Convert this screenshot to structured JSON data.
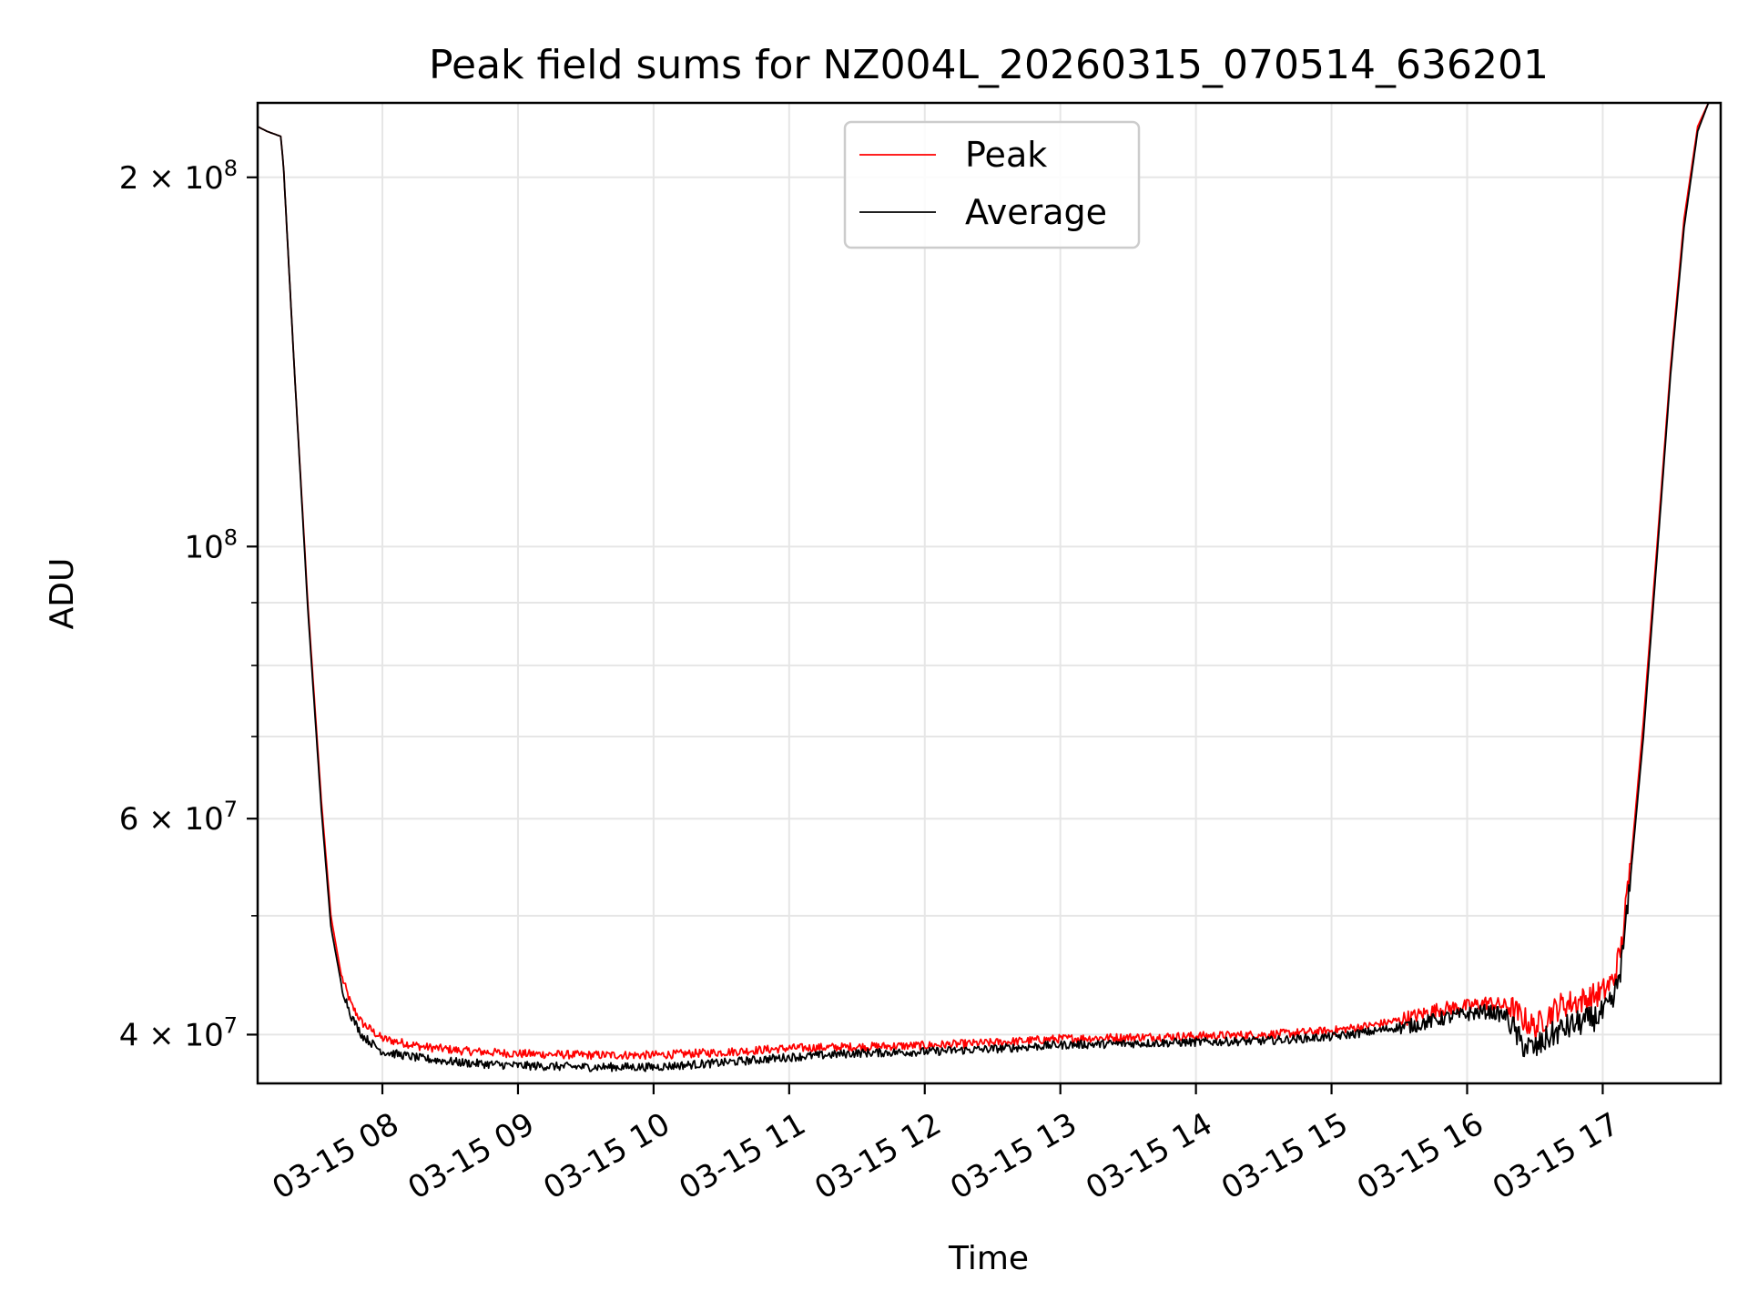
{
  "chart_data": {
    "type": "line",
    "title": "Peak field sums for NZ004L_20260315_070514_636201",
    "xlabel": "Time",
    "ylabel": "ADU",
    "yscale": "log",
    "grid": true,
    "legend_position": "upper-center",
    "colors": {
      "Peak": "#ff0000",
      "Average": "#000000"
    },
    "xlim_hours": [
      7.08,
      17.87
    ],
    "ylim": [
      36500000,
      230000000
    ],
    "x_ticks": [
      {
        "value": 8,
        "label": "03-15 08"
      },
      {
        "value": 9,
        "label": "03-15 09"
      },
      {
        "value": 10,
        "label": "03-15 10"
      },
      {
        "value": 11,
        "label": "03-15 11"
      },
      {
        "value": 12,
        "label": "03-15 12"
      },
      {
        "value": 13,
        "label": "03-15 13"
      },
      {
        "value": 14,
        "label": "03-15 14"
      },
      {
        "value": 15,
        "label": "03-15 15"
      },
      {
        "value": 16,
        "label": "03-15 16"
      },
      {
        "value": 17,
        "label": "03-15 17"
      }
    ],
    "y_ticks_major": [
      {
        "value": 40000000,
        "base": "4 × 10",
        "exp": "7"
      },
      {
        "value": 60000000,
        "base": "6 × 10",
        "exp": "7"
      },
      {
        "value": 100000000,
        "base": "10",
        "exp": "8"
      },
      {
        "value": 200000000,
        "base": "2 × 10",
        "exp": "8"
      }
    ],
    "y_ticks_minor": [
      50000000,
      70000000,
      80000000,
      90000000
    ],
    "series": [
      {
        "name": "Peak",
        "x": [
          7.08,
          7.15,
          7.25,
          7.27,
          7.35,
          7.45,
          7.55,
          7.62,
          7.7,
          7.77,
          7.85,
          8.0,
          8.3,
          8.6,
          9.0,
          9.5,
          10.0,
          10.5,
          11.0,
          11.5,
          12.0,
          12.5,
          13.0,
          13.5,
          14.0,
          14.5,
          15.0,
          15.3,
          15.6,
          15.8,
          16.0,
          16.15,
          16.3,
          16.4,
          16.5,
          16.6,
          16.7,
          16.8,
          16.9,
          17.0,
          17.08,
          17.14,
          17.2,
          17.3,
          17.4,
          17.5,
          17.6,
          17.7,
          17.78,
          17.87
        ],
        "y": [
          220000000,
          218000000,
          216000000,
          205000000,
          140000000,
          90000000,
          62000000,
          50000000,
          44500000,
          42200000,
          40800000,
          39600000,
          39000000,
          38700000,
          38500000,
          38400000,
          38400000,
          38600000,
          38900000,
          39000000,
          39100000,
          39300000,
          39600000,
          39700000,
          39800000,
          39900000,
          40200000,
          40600000,
          41200000,
          41800000,
          42000000,
          42300000,
          42000000,
          41000000,
          40200000,
          41200000,
          42000000,
          42200000,
          42500000,
          43000000,
          44000000,
          47000000,
          54000000,
          72000000,
          100000000,
          140000000,
          185000000,
          220000000,
          230000000,
          230000000
        ]
      },
      {
        "name": "Average",
        "x": [
          7.08,
          7.15,
          7.25,
          7.27,
          7.35,
          7.45,
          7.55,
          7.62,
          7.7,
          7.77,
          7.85,
          8.0,
          8.3,
          8.6,
          9.0,
          9.5,
          10.0,
          10.5,
          11.0,
          11.5,
          12.0,
          12.5,
          13.0,
          13.5,
          14.0,
          14.5,
          15.0,
          15.3,
          15.6,
          15.8,
          16.0,
          16.15,
          16.3,
          16.4,
          16.5,
          16.6,
          16.7,
          16.8,
          16.9,
          17.0,
          17.08,
          17.14,
          17.2,
          17.3,
          17.4,
          17.5,
          17.6,
          17.7,
          17.78,
          17.87
        ],
        "y": [
          220000000,
          218000000,
          216000000,
          205000000,
          140000000,
          89000000,
          61000000,
          49000000,
          43800000,
          41500000,
          40000000,
          38800000,
          38300000,
          38000000,
          37800000,
          37700000,
          37700000,
          38000000,
          38400000,
          38700000,
          38800000,
          39000000,
          39300000,
          39400000,
          39500000,
          39600000,
          39900000,
          40300000,
          40800000,
          41300000,
          41700000,
          41900000,
          41500000,
          39500000,
          39100000,
          40000000,
          40600000,
          41000000,
          41300000,
          41800000,
          42800000,
          46000000,
          53000000,
          70000000,
          98000000,
          138000000,
          182000000,
          218000000,
          230000000,
          230000000
        ]
      }
    ]
  }
}
